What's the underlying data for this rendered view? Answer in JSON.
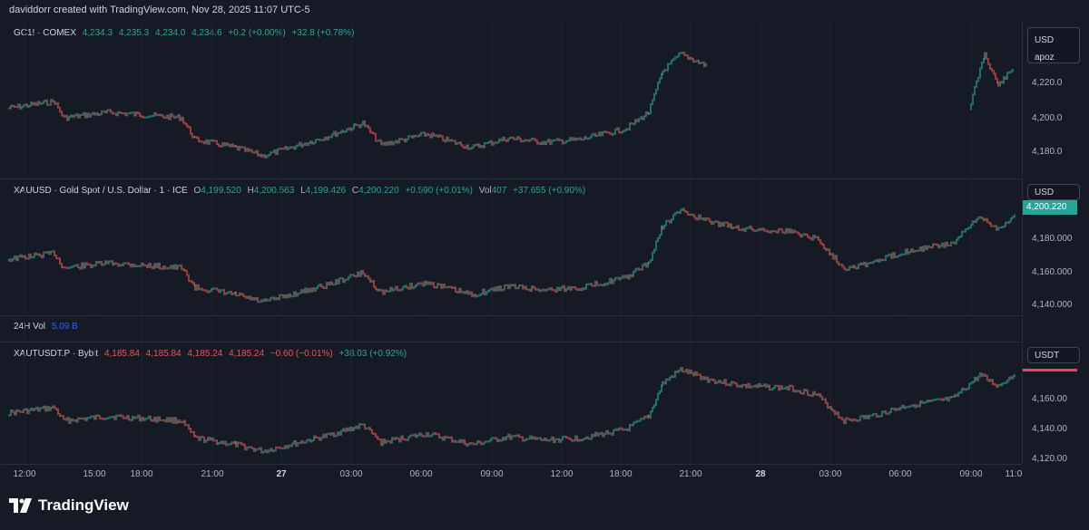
{
  "header": {
    "text": "daviddorr created with TradingView.com, Nov 28, 2025 11:07 UTC-5"
  },
  "panes": [
    {
      "symbol": "GC1! · COMEX",
      "values": [
        "4,234.3",
        "4,235.3",
        "4,234.0",
        "4,234.6",
        "+0.2 (+0.00%)",
        "+32.8 (+0.78%)"
      ],
      "currency": "USD",
      "currency_sub": "apoz",
      "axis_labels": [
        "4,220.0",
        "4,200.0",
        "4,180.0"
      ]
    },
    {
      "symbol": "XAUUSD · Gold Spot / U.S. Dollar · 1 · ICE",
      "ohlc": {
        "o_label": "O",
        "o": "4,199.520",
        "h_label": "H",
        "h": "4,200.563",
        "l_label": "L",
        "l": "4,199.426",
        "c_label": "C",
        "c": "4,200.220"
      },
      "change": "+0.590 (+0.01%)",
      "vol_label": "Vol",
      "vol": "407",
      "session_change": "+37.655 (+0.90%)",
      "currency": "USD",
      "price_tag": "4,200.220",
      "axis_labels": [
        "4,180.000",
        "4,160.000",
        "4,140.000"
      ]
    },
    {
      "label": "24H Vol",
      "value": "5.09 B"
    },
    {
      "symbol": "XAUTUSDT.P · Bybit",
      "values": [
        "4,185.84",
        "4,185.84",
        "4,185.24",
        "4,185.24",
        "−0.60 (−0.01%)",
        "+38.03 (+0.92%)"
      ],
      "currency": "USDT",
      "axis_labels": [
        "4,160.00",
        "4,140.00",
        "4,120.00"
      ]
    }
  ],
  "time_axis": [
    "12:00",
    "15:00",
    "18:00",
    "21:00",
    "27",
    "03:00",
    "06:00",
    "09:00",
    "12:00",
    "18:00",
    "21:00",
    "28",
    "03:00",
    "06:00",
    "09:00",
    "11:0"
  ],
  "brand": {
    "name": "TradingView",
    "logo_icon": "tradingview-logo-icon"
  },
  "colors": {
    "up": "#26a69a",
    "down": "#ef5350",
    "tag_green": "#26a69a",
    "tag_pink": "#f23f6e",
    "background": "#161a25"
  }
}
